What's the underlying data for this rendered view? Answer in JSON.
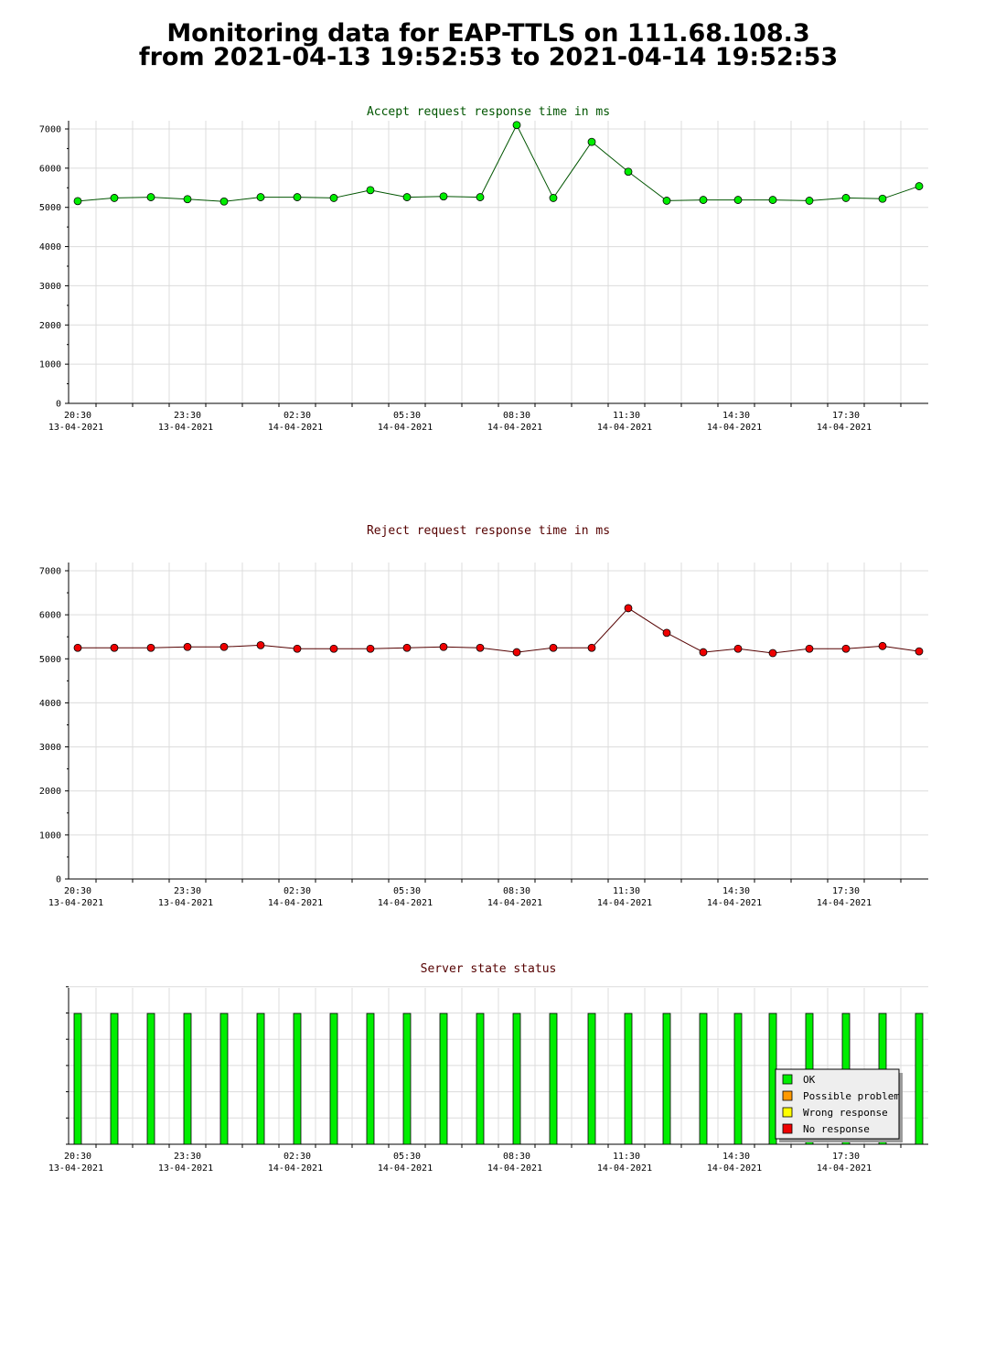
{
  "page_title": {
    "line1": "Monitoring data for EAP-TTLS on 111.68.108.3",
    "line2": "from 2021-04-13 19:52:53 to 2021-04-14 19:52:53"
  },
  "x_axis_labels": [
    {
      "time": "20:30",
      "date": "13-04-2021"
    },
    {
      "time": "23:30",
      "date": "13-04-2021"
    },
    {
      "time": "02:30",
      "date": "14-04-2021"
    },
    {
      "time": "05:30",
      "date": "14-04-2021"
    },
    {
      "time": "08:30",
      "date": "14-04-2021"
    },
    {
      "time": "11:30",
      "date": "14-04-2021"
    },
    {
      "time": "14:30",
      "date": "14-04-2021"
    },
    {
      "time": "17:30",
      "date": "14-04-2021"
    }
  ],
  "legend": [
    {
      "label": "OK",
      "color": "#00ee00"
    },
    {
      "label": "Possible problem",
      "color": "#ff9900"
    },
    {
      "label": "Wrong response",
      "color": "#ffff00"
    },
    {
      "label": "No response",
      "color": "#ee0000"
    }
  ],
  "chart_data": [
    {
      "type": "line",
      "title": "Accept request response time in ms",
      "title_color": "#005500",
      "line_color": "#005500",
      "marker_color": "#00ee00",
      "ylim": [
        0,
        7000
      ],
      "yticks": [
        0,
        1000,
        2000,
        3000,
        4000,
        5000,
        6000,
        7000
      ],
      "xlim_hours": [
        20.25,
        43.75
      ],
      "x_hours": [
        20.5,
        21.5,
        22.5,
        23.5,
        24.5,
        25.5,
        26.5,
        27.5,
        28.5,
        29.5,
        30.5,
        31.5,
        32.5,
        33.5,
        34.55,
        35.55,
        36.6,
        37.6,
        38.55,
        39.5,
        40.5,
        41.5,
        42.5,
        43.5
      ],
      "values": [
        5160,
        5240,
        5260,
        5210,
        5150,
        5260,
        5260,
        5240,
        5440,
        5260,
        5280,
        5260,
        7100,
        5240,
        6670,
        5910,
        5170,
        5190,
        5190,
        5190,
        5170,
        5240,
        5220,
        5540
      ],
      "grid": true
    },
    {
      "type": "line",
      "title": "Reject request response time in ms",
      "title_color": "#550000",
      "line_color": "#550000",
      "marker_color": "#ee0000",
      "ylim": [
        0,
        7000
      ],
      "yticks": [
        0,
        1000,
        2000,
        3000,
        4000,
        5000,
        6000,
        7000
      ],
      "xlim_hours": [
        20.25,
        43.75
      ],
      "x_hours": [
        20.5,
        21.5,
        22.5,
        23.5,
        24.5,
        25.5,
        26.5,
        27.5,
        28.5,
        29.5,
        30.5,
        31.5,
        32.5,
        33.5,
        34.55,
        35.55,
        36.6,
        37.6,
        38.55,
        39.5,
        40.5,
        41.5,
        42.5,
        43.5
      ],
      "values": [
        5250,
        5250,
        5250,
        5270,
        5270,
        5310,
        5230,
        5230,
        5230,
        5250,
        5270,
        5250,
        5150,
        5250,
        5250,
        6150,
        5590,
        5150,
        5230,
        5130,
        5230,
        5230,
        5290,
        5170
      ],
      "grid": true
    },
    {
      "type": "bar",
      "title": "Server state status",
      "title_color": "#550000",
      "xlim_hours": [
        20.25,
        43.75
      ],
      "x_hours": [
        20.5,
        21.5,
        22.5,
        23.5,
        24.5,
        25.5,
        26.5,
        27.5,
        28.5,
        29.5,
        30.5,
        31.5,
        32.5,
        33.5,
        34.55,
        35.55,
        36.6,
        37.6,
        38.55,
        39.5,
        40.5,
        41.5,
        42.5,
        43.5
      ],
      "status": [
        "OK",
        "OK",
        "OK",
        "OK",
        "OK",
        "OK",
        "OK",
        "OK",
        "OK",
        "OK",
        "OK",
        "OK",
        "OK",
        "OK",
        "OK",
        "OK",
        "OK",
        "OK",
        "OK",
        "OK",
        "OK",
        "OK",
        "OK",
        "OK"
      ],
      "legend_position": "bottom-right"
    }
  ]
}
